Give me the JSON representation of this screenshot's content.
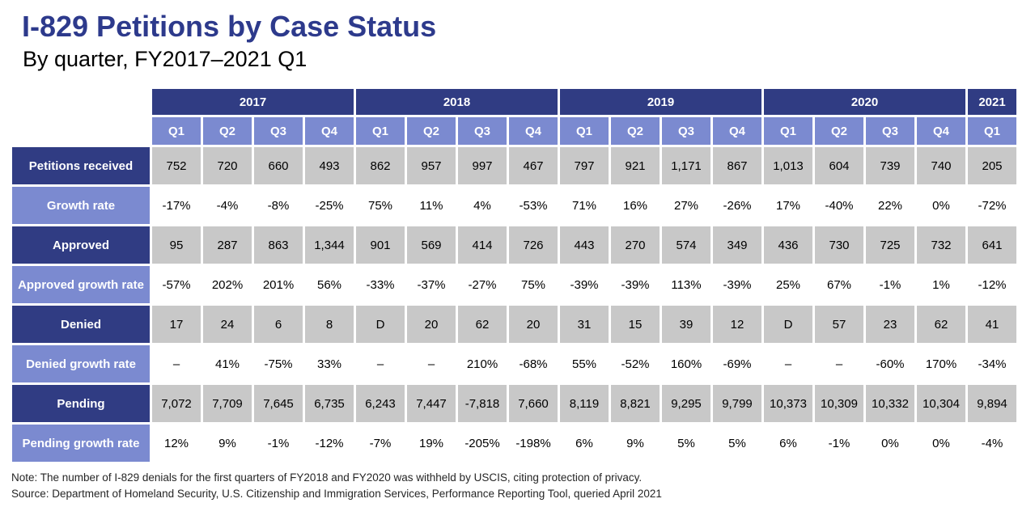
{
  "page": {
    "title": "I-829 Petitions by Case Status",
    "subtitle": "By quarter, FY2017–2021 Q1"
  },
  "colors": {
    "title_blue": "#2D3A8C",
    "header_dark_navy": "#303C83",
    "header_periwinkle": "#7B8AD0",
    "cell_gray": "#C8C8C8"
  },
  "chart_data": {
    "type": "table",
    "title": "I-829 Petitions by Case Status",
    "subtitle": "By quarter, FY2017–2021 Q1",
    "year_groups": [
      {
        "label": "2017",
        "span": 4
      },
      {
        "label": "2018",
        "span": 4
      },
      {
        "label": "2019",
        "span": 4
      },
      {
        "label": "2020",
        "span": 4
      },
      {
        "label": "2021",
        "span": 1
      }
    ],
    "quarter_headers": [
      "Q1",
      "Q2",
      "Q3",
      "Q4",
      "Q1",
      "Q2",
      "Q3",
      "Q4",
      "Q1",
      "Q2",
      "Q3",
      "Q4",
      "Q1",
      "Q2",
      "Q3",
      "Q4",
      "Q1"
    ],
    "rows": [
      {
        "label": "Petitions received",
        "style": "value",
        "values": [
          "752",
          "720",
          "660",
          "493",
          "862",
          "957",
          "997",
          "467",
          "797",
          "921",
          "1,171",
          "867",
          "1,013",
          "604",
          "739",
          "740",
          "205"
        ]
      },
      {
        "label": "Growth rate",
        "style": "growth",
        "values": [
          "-17%",
          "-4%",
          "-8%",
          "-25%",
          "75%",
          "11%",
          "4%",
          "-53%",
          "71%",
          "16%",
          "27%",
          "-26%",
          "17%",
          "-40%",
          "22%",
          "0%",
          "-72%"
        ]
      },
      {
        "label": "Approved",
        "style": "value",
        "values": [
          "95",
          "287",
          "863",
          "1,344",
          "901",
          "569",
          "414",
          "726",
          "443",
          "270",
          "574",
          "349",
          "436",
          "730",
          "725",
          "732",
          "641"
        ]
      },
      {
        "label": "Approved growth rate",
        "style": "growth",
        "values": [
          "-57%",
          "202%",
          "201%",
          "56%",
          "-33%",
          "-37%",
          "-27%",
          "75%",
          "-39%",
          "-39%",
          "113%",
          "-39%",
          "25%",
          "67%",
          "-1%",
          "1%",
          "-12%"
        ]
      },
      {
        "label": "Denied",
        "style": "value",
        "values": [
          "17",
          "24",
          "6",
          "8",
          "D",
          "20",
          "62",
          "20",
          "31",
          "15",
          "39",
          "12",
          "D",
          "57",
          "23",
          "62",
          "41"
        ]
      },
      {
        "label": "Denied growth rate",
        "style": "growth",
        "values": [
          "–",
          "41%",
          "-75%",
          "33%",
          "–",
          "–",
          "210%",
          "-68%",
          "55%",
          "-52%",
          "160%",
          "-69%",
          "–",
          "–",
          "-60%",
          "170%",
          "-34%"
        ]
      },
      {
        "label": "Pending",
        "style": "value",
        "values": [
          "7,072",
          "7,709",
          "7,645",
          "6,735",
          "6,243",
          "7,447",
          "-7,818",
          "7,660",
          "8,119",
          "8,821",
          "9,295",
          "9,799",
          "10,373",
          "10,309",
          "10,332",
          "10,304",
          "9,894"
        ]
      },
      {
        "label": "Pending growth rate",
        "style": "growth",
        "values": [
          "12%",
          "9%",
          "-1%",
          "-12%",
          "-7%",
          "19%",
          "-205%",
          "-198%",
          "6%",
          "9%",
          "5%",
          "5%",
          "6%",
          "-1%",
          "0%",
          "0%",
          "-4%"
        ]
      }
    ],
    "notes": [
      "Note: The number of I-829 denials for the first quarters of FY2018 and FY2020 was withheld by USCIS, citing protection of privacy.",
      "Source: Department of Homeland Security, U.S. Citizenship and Immigration Services, Performance Reporting Tool, queried April 2021"
    ]
  }
}
